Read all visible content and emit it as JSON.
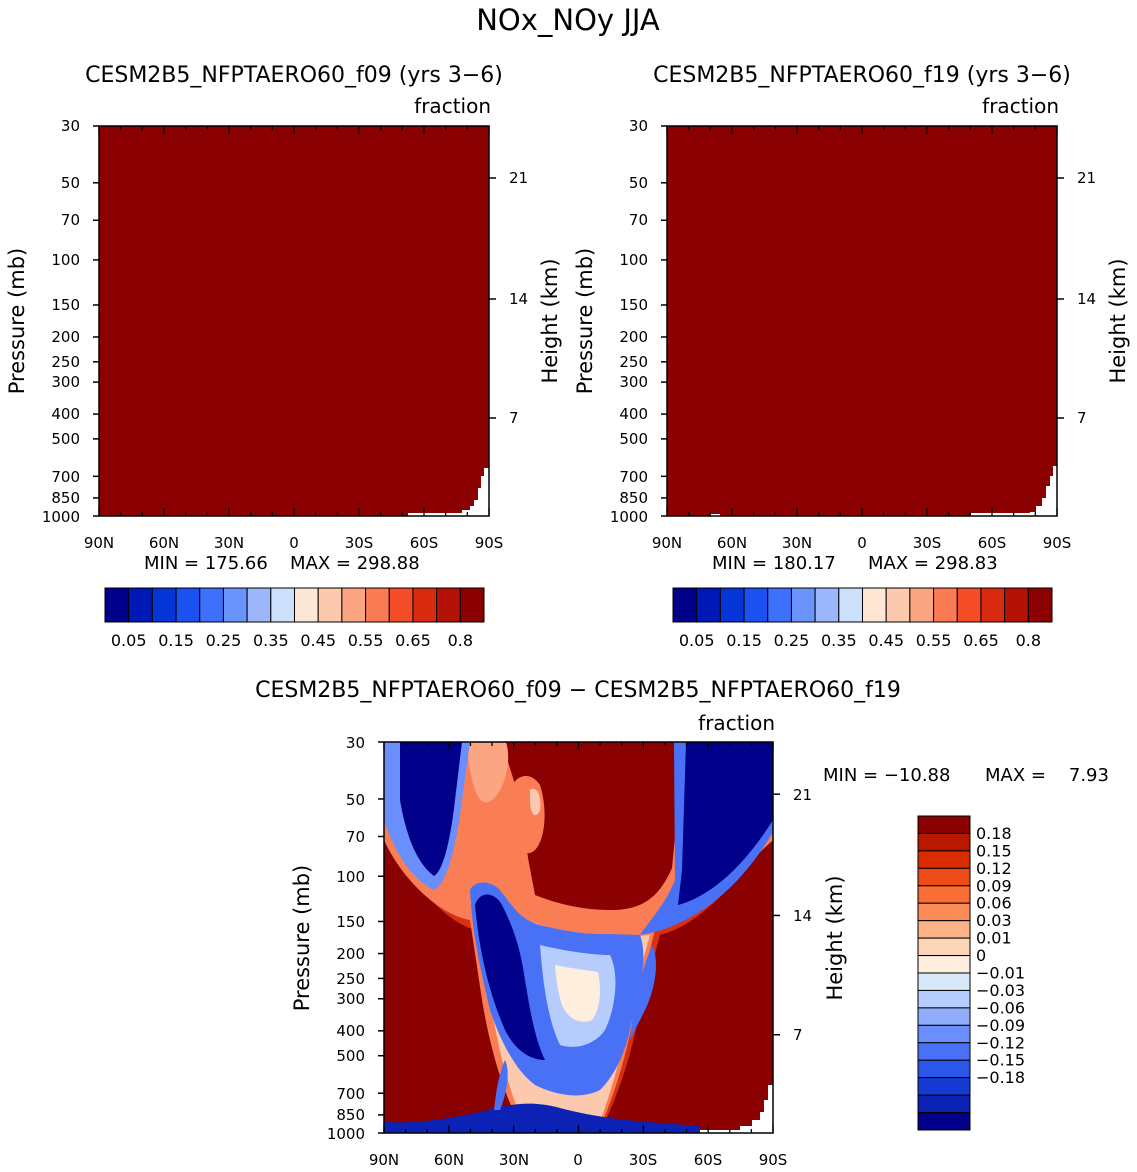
{
  "figure_title": "NOx_NOy JJA",
  "colors": {
    "dark_red": "#8b0000",
    "dark_blue": "#00008b"
  },
  "chart_data": [
    {
      "type": "heatmap",
      "id": "p1",
      "title": "CESM2B5_NFPTAERO60_f09 (yrs 3−6)",
      "units": "fraction",
      "ylabel": "Pressure (mb)",
      "ylabel_right": "Height (km)",
      "x_ticks": [
        "90N",
        "60N",
        "30N",
        "0",
        "30S",
        "60S",
        "90S"
      ],
      "y_ticks": [
        30,
        50,
        70,
        100,
        150,
        200,
        250,
        300,
        400,
        500,
        700,
        850,
        1000
      ],
      "height_ticks": [
        21,
        14,
        7
      ],
      "ylim": [
        1000,
        30
      ],
      "min_label": "MIN = 175.66",
      "max_label": "MAX = 298.88",
      "description": "field saturated at top contour level (> 0.8) everywhere except small gap near surface at high southern latitudes"
    },
    {
      "type": "heatmap",
      "id": "p2",
      "title": "CESM2B5_NFPTAERO60_f19 (yrs 3−6)",
      "units": "fraction",
      "ylabel": "Pressure (mb)",
      "ylabel_right": "Height (km)",
      "x_ticks": [
        "90N",
        "60N",
        "30N",
        "0",
        "30S",
        "60S",
        "90S"
      ],
      "y_ticks": [
        30,
        50,
        70,
        100,
        150,
        200,
        250,
        300,
        400,
        500,
        700,
        850,
        1000
      ],
      "height_ticks": [
        21,
        14,
        7
      ],
      "ylim": [
        1000,
        30
      ],
      "min_label": "MIN = 180.17",
      "max_label": "MAX = 298.83"
    },
    {
      "type": "heatmap",
      "id": "diff",
      "title": "CESM2B5_NFPTAERO60_f09 − CESM2B5_NFPTAERO60_f19",
      "units": "fraction",
      "ylabel": "Pressure (mb)",
      "ylabel_right": "Height (km)",
      "x_ticks": [
        "90N",
        "60N",
        "30N",
        "0",
        "30S",
        "60S",
        "90S"
      ],
      "y_ticks": [
        30,
        50,
        70,
        100,
        150,
        200,
        250,
        300,
        400,
        500,
        700,
        850,
        1000
      ],
      "height_ticks": [
        21,
        14,
        7
      ],
      "ylim": [
        1000,
        30
      ],
      "min_label": "MIN = −10.88",
      "max_label": "MAX =    7.93"
    }
  ],
  "colorbar_top": {
    "colors": [
      "#00008b",
      "#0019b6",
      "#0635d7",
      "#1b51f0",
      "#3d70fb",
      "#6b93fc",
      "#9cb7fc",
      "#cde0fb",
      "#fde6d3",
      "#fcc9ae",
      "#fba582",
      "#fa7a53",
      "#f44d27",
      "#d82a0e",
      "#b31205",
      "#8b0000"
    ],
    "labels": [
      "0.05",
      "0.15",
      "0.25",
      "0.35",
      "0.45",
      "0.55",
      "0.65",
      "0.8"
    ]
  },
  "colorbar_diff": {
    "colors": [
      "#8b0000",
      "#bb1800",
      "#d92d00",
      "#ef4d18",
      "#f96e35",
      "#fb8c58",
      "#fcb186",
      "#fcd4b8",
      "#fdeedd",
      "#d7e8fb",
      "#b6ccfc",
      "#8fadfc",
      "#6a8efb",
      "#4971f6",
      "#2b56ea",
      "#163bd5",
      "#0c22b5",
      "#00008b"
    ],
    "labels": [
      "0.18",
      "0.15",
      "0.12",
      "0.09",
      "0.06",
      "0.03",
      "0.01",
      "0",
      "−0.01",
      "−0.03",
      "−0.06",
      "−0.09",
      "−0.12",
      "−0.15",
      "−0.18"
    ]
  }
}
